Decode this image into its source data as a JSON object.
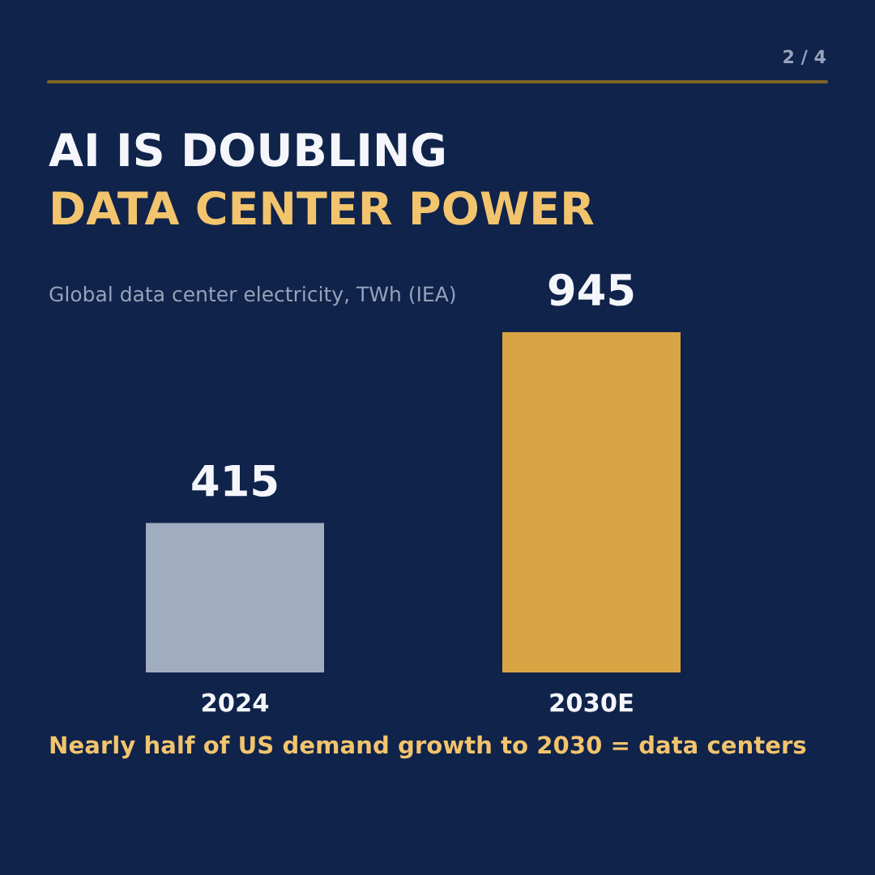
{
  "chart_data": {
    "type": "bar",
    "title": "AI IS DOUBLING",
    "subtitle": "DATA CENTER POWER",
    "ylabel": "Global data center electricity, TWh (IEA)",
    "categories": [
      "2024",
      "2030E"
    ],
    "values": [
      415,
      945
    ],
    "colors": [
      "#a0acbf",
      "#d9a444"
    ],
    "data_labels": true,
    "annotations": [
      "Nearly half of US demand growth to 2030 = data centers",
      "2 / 4"
    ]
  }
}
